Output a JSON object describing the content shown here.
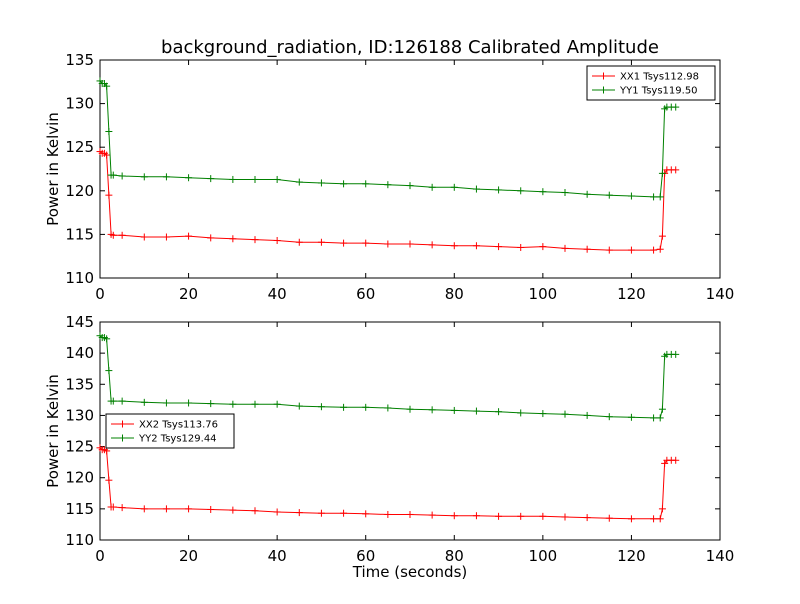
{
  "title": "background_radiation, ID:126188 Calibrated Amplitude",
  "chart_data": [
    {
      "type": "line",
      "title": "background_radiation, ID:126188 Calibrated Amplitude",
      "xlabel": "",
      "ylabel": "Power in Kelvin",
      "xlim": [
        0,
        140
      ],
      "ylim": [
        110,
        135
      ],
      "xticks": [
        0,
        20,
        40,
        60,
        80,
        100,
        120,
        140
      ],
      "yticks": [
        110,
        115,
        120,
        125,
        130,
        135
      ],
      "grid": false,
      "legend_position": "top-right",
      "series": [
        {
          "name": "XX1 Tsys112.98",
          "color": "#ff0000",
          "x": [
            0,
            0.5,
            1,
            1.5,
            2,
            2.5,
            3,
            5,
            10,
            15,
            20,
            25,
            30,
            35,
            40,
            45,
            50,
            55,
            60,
            65,
            70,
            75,
            80,
            85,
            90,
            95,
            100,
            105,
            110,
            115,
            120,
            125,
            126.5,
            127,
            127.5,
            128,
            129,
            130
          ],
          "y": [
            124.5,
            124.3,
            124.3,
            124.1,
            119.5,
            115.0,
            114.9,
            114.9,
            114.7,
            114.7,
            114.8,
            114.6,
            114.5,
            114.4,
            114.3,
            114.1,
            114.1,
            114.0,
            114.0,
            113.9,
            113.9,
            113.8,
            113.7,
            113.7,
            113.6,
            113.5,
            113.6,
            113.4,
            113.3,
            113.2,
            113.2,
            113.2,
            113.3,
            114.8,
            122.0,
            122.4,
            122.4,
            122.4
          ]
        },
        {
          "name": "YY1 Tsys119.50",
          "color": "#008000",
          "x": [
            0,
            0.5,
            1,
            1.5,
            2,
            2.5,
            3,
            5,
            10,
            15,
            20,
            25,
            30,
            35,
            40,
            45,
            50,
            55,
            60,
            65,
            70,
            75,
            80,
            85,
            90,
            95,
            100,
            105,
            110,
            115,
            120,
            125,
            126.5,
            127,
            127.5,
            128,
            129,
            130
          ],
          "y": [
            132.6,
            132.3,
            132.3,
            132.0,
            126.8,
            121.8,
            121.8,
            121.7,
            121.6,
            121.6,
            121.5,
            121.4,
            121.3,
            121.3,
            121.3,
            121.0,
            120.9,
            120.8,
            120.8,
            120.7,
            120.6,
            120.4,
            120.4,
            120.2,
            120.1,
            120.0,
            119.9,
            119.8,
            119.6,
            119.5,
            119.4,
            119.3,
            119.3,
            122.0,
            129.4,
            129.6,
            129.6,
            129.6
          ]
        }
      ]
    },
    {
      "type": "line",
      "title": "",
      "xlabel": "Time (seconds)",
      "ylabel": "Power in Kelvin",
      "xlim": [
        0,
        140
      ],
      "ylim": [
        110,
        145
      ],
      "xticks": [
        0,
        20,
        40,
        60,
        80,
        100,
        120,
        140
      ],
      "yticks": [
        110,
        115,
        120,
        125,
        130,
        135,
        140,
        145
      ],
      "grid": false,
      "legend_position": "center-left",
      "series": [
        {
          "name": "XX2 Tsys113.76",
          "color": "#ff0000",
          "x": [
            0,
            0.5,
            1,
            1.5,
            2,
            2.5,
            3,
            5,
            10,
            15,
            20,
            25,
            30,
            35,
            40,
            45,
            50,
            55,
            60,
            65,
            70,
            75,
            80,
            85,
            90,
            95,
            100,
            105,
            110,
            115,
            120,
            125,
            126.5,
            127,
            127.5,
            128,
            129,
            130
          ],
          "y": [
            124.8,
            124.5,
            124.5,
            124.3,
            119.6,
            115.3,
            115.3,
            115.2,
            115.0,
            115.0,
            115.0,
            114.9,
            114.8,
            114.7,
            114.5,
            114.4,
            114.3,
            114.3,
            114.2,
            114.1,
            114.1,
            114.0,
            113.9,
            113.9,
            113.8,
            113.8,
            113.8,
            113.7,
            113.6,
            113.5,
            113.4,
            113.4,
            113.4,
            115.0,
            122.3,
            122.8,
            122.8,
            122.8
          ]
        },
        {
          "name": "YY2 Tsys129.44",
          "color": "#008000",
          "x": [
            0,
            0.5,
            1,
            1.5,
            2,
            2.5,
            3,
            5,
            10,
            15,
            20,
            25,
            30,
            35,
            40,
            45,
            50,
            55,
            60,
            65,
            70,
            75,
            80,
            85,
            90,
            95,
            100,
            105,
            110,
            115,
            120,
            125,
            126.5,
            127,
            127.5,
            128,
            129,
            130
          ],
          "y": [
            142.8,
            142.5,
            142.5,
            142.3,
            137.2,
            132.3,
            132.3,
            132.3,
            132.1,
            132.0,
            132.0,
            131.9,
            131.8,
            131.8,
            131.8,
            131.5,
            131.4,
            131.3,
            131.3,
            131.2,
            131.0,
            130.9,
            130.8,
            130.7,
            130.6,
            130.4,
            130.3,
            130.2,
            130.0,
            129.8,
            129.7,
            129.6,
            129.6,
            131.0,
            139.5,
            139.8,
            139.8,
            139.8
          ]
        }
      ]
    }
  ]
}
